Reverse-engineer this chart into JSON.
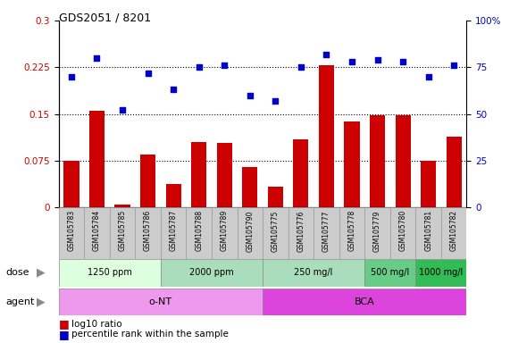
{
  "title": "GDS2051 / 8201",
  "samples": [
    "GSM105783",
    "GSM105784",
    "GSM105785",
    "GSM105786",
    "GSM105787",
    "GSM105788",
    "GSM105789",
    "GSM105790",
    "GSM105775",
    "GSM105776",
    "GSM105777",
    "GSM105778",
    "GSM105779",
    "GSM105780",
    "GSM105781",
    "GSM105782"
  ],
  "log10_ratio": [
    0.075,
    0.155,
    0.005,
    0.085,
    0.038,
    0.105,
    0.103,
    0.065,
    0.033,
    0.11,
    0.228,
    0.138,
    0.148,
    0.148,
    0.075,
    0.113
  ],
  "percentile_rank": [
    70,
    80,
    52,
    72,
    63,
    75,
    76,
    60,
    57,
    75,
    82,
    78,
    79,
    78,
    70,
    76
  ],
  "ylim_left": [
    0,
    0.3
  ],
  "ylim_right": [
    0,
    100
  ],
  "yticks_left": [
    0,
    0.075,
    0.15,
    0.225,
    0.3
  ],
  "yticks_right": [
    0,
    25,
    50,
    75,
    100
  ],
  "bar_color": "#cc0000",
  "scatter_color": "#0000cc",
  "dose_groups": [
    {
      "label": "1250 ppm",
      "start": 0,
      "end": 4,
      "color": "#ddffdd"
    },
    {
      "label": "2000 ppm",
      "start": 4,
      "end": 8,
      "color": "#aaeebb"
    },
    {
      "label": "250 mg/l",
      "start": 8,
      "end": 12,
      "color": "#aaeebb"
    },
    {
      "label": "500 mg/l",
      "start": 12,
      "end": 14,
      "color": "#66dd88"
    },
    {
      "label": "1000 mg/l",
      "start": 14,
      "end": 16,
      "color": "#33cc55"
    }
  ],
  "agent_groups": [
    {
      "label": "o-NT",
      "start": 0,
      "end": 8,
      "color": "#ee99ee"
    },
    {
      "label": "BCA",
      "start": 8,
      "end": 16,
      "color": "#dd44dd"
    }
  ],
  "legend_bar_label": "log10 ratio",
  "legend_scatter_label": "percentile rank within the sample",
  "tick_label_color_left": "#cc0000",
  "tick_label_color_right": "#0000cc",
  "sample_bg_color": "#cccccc",
  "grid_yticks": [
    0.075,
    0.15,
    0.225
  ]
}
